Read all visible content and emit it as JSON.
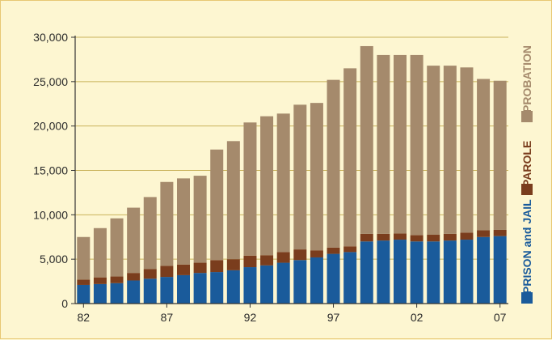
{
  "chart_data": {
    "type": "bar",
    "stacked": true,
    "categories": [
      "82",
      "83",
      "84",
      "85",
      "86",
      "87",
      "88",
      "89",
      "90",
      "91",
      "92",
      "93",
      "94",
      "95",
      "96",
      "97",
      "98",
      "99",
      "00",
      "01",
      "02",
      "03",
      "04",
      "05",
      "06",
      "07"
    ],
    "x_tick_labels": [
      "82",
      "87",
      "92",
      "97",
      "02",
      "07"
    ],
    "ylim": [
      0,
      30000
    ],
    "y_ticks": [
      0,
      5000,
      10000,
      15000,
      20000,
      25000,
      30000
    ],
    "y_tick_labels": [
      "0",
      "5,000",
      "10,000",
      "15,000",
      "20,000",
      "25,000",
      "30,000"
    ],
    "grid": true,
    "legend_placement": "right, rotated vertical",
    "series": [
      {
        "name": "PRISON and JAIL",
        "color": "#1a5b9b",
        "values": [
          2100,
          2200,
          2300,
          2600,
          2800,
          3000,
          3200,
          3450,
          3550,
          3750,
          4100,
          4300,
          4600,
          4900,
          5200,
          5600,
          5800,
          7000,
          7100,
          7200,
          7000,
          7000,
          7100,
          7200,
          7500,
          7600
        ]
      },
      {
        "name": "PAROLE",
        "color": "#7a3d1d",
        "values": [
          600,
          750,
          750,
          850,
          1100,
          1250,
          1200,
          1150,
          1350,
          1250,
          1300,
          1150,
          1200,
          1200,
          800,
          700,
          650,
          850,
          750,
          700,
          700,
          750,
          750,
          800,
          750,
          700
        ]
      },
      {
        "name": "PROBATION",
        "color": "#a58a6c",
        "values": [
          4800,
          5550,
          6550,
          7350,
          8100,
          9450,
          9700,
          9800,
          12450,
          13300,
          15000,
          15650,
          15600,
          16300,
          16600,
          18900,
          20050,
          21150,
          20150,
          20100,
          20300,
          19050,
          18950,
          18600,
          17050,
          16800
        ]
      }
    ]
  }
}
